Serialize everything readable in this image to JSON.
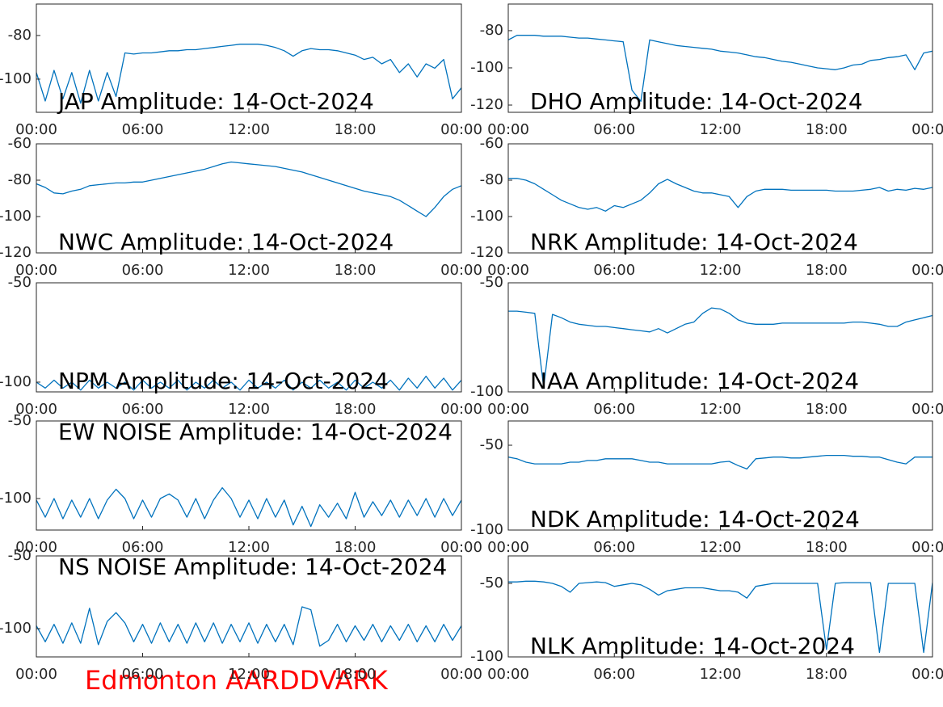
{
  "chart_data": [
    {
      "type": "line",
      "title": "JAP Amplitude: 14-Oct-2024",
      "color": "#0072bd",
      "x": [
        0,
        0.5,
        1,
        1.5,
        2,
        2.5,
        3,
        3.5,
        4,
        4.5,
        5,
        5.5,
        6,
        6.5,
        7,
        7.5,
        8,
        8.5,
        9,
        9.5,
        10,
        10.5,
        11,
        11.5,
        12,
        12.5,
        13,
        13.5,
        14,
        14.5,
        15,
        15.5,
        16,
        16.5,
        17,
        17.5,
        18,
        18.5,
        19,
        19.5,
        20,
        20.5,
        21,
        21.5,
        22,
        22.5,
        23,
        23.5,
        24
      ],
      "values": [
        -97,
        -110,
        -96,
        -109,
        -97,
        -111,
        -96,
        -110,
        -97,
        -108,
        -88,
        -88.5,
        -88,
        -88,
        -87.5,
        -87,
        -87,
        -86.5,
        -86.5,
        -86,
        -85.5,
        -85,
        -84.5,
        -84,
        -84,
        -84,
        -84.5,
        -85.5,
        -87,
        -89.5,
        -87,
        -86,
        -86.5,
        -86.5,
        -87,
        -88,
        -89,
        -91,
        -90,
        -93,
        -91,
        -97,
        -93,
        -99,
        -93,
        -95,
        -91,
        -109,
        -104
      ],
      "xlim": [
        0,
        24
      ],
      "xticks": [
        {
          "value": 0,
          "label": "00:00"
        },
        {
          "value": 6,
          "label": "06:00"
        },
        {
          "value": 12,
          "label": "12:00"
        },
        {
          "value": 18,
          "label": "18:00"
        },
        {
          "value": 24,
          "label": "00:00"
        }
      ],
      "ylim": [
        -115.2,
        -65.6
      ],
      "yticks": [
        -80,
        -100
      ]
    },
    {
      "type": "line",
      "title": "DHO Amplitude: 14-Oct-2024",
      "color": "#0072bd",
      "x": [
        0,
        0.5,
        1,
        1.5,
        2,
        2.5,
        3,
        3.5,
        4,
        4.5,
        5,
        5.5,
        6,
        6.5,
        7,
        7.5,
        8,
        8.5,
        9,
        9.5,
        10,
        10.5,
        11,
        11.5,
        12,
        12.5,
        13,
        13.5,
        14,
        14.5,
        15,
        15.5,
        16,
        16.5,
        17,
        17.5,
        18,
        18.5,
        19,
        19.5,
        20,
        20.5,
        21,
        21.5,
        22,
        22.5,
        23,
        23.5,
        24
      ],
      "values": [
        -85,
        -82.5,
        -82.5,
        -82.5,
        -83,
        -83,
        -83,
        -83.5,
        -84,
        -84,
        -84.5,
        -85,
        -85.5,
        -86,
        -112,
        -118,
        -85,
        -86,
        -87,
        -88,
        -88.5,
        -89,
        -89.5,
        -90,
        -91,
        -91.5,
        -92,
        -93,
        -94,
        -94.5,
        -95.5,
        -96.5,
        -97,
        -98,
        -99,
        -100,
        -100.5,
        -101,
        -100,
        -98.5,
        -98,
        -96,
        -95.5,
        -94.5,
        -94,
        -93,
        -101,
        -92,
        -91
      ],
      "xlim": [
        0,
        24
      ],
      "xticks": [
        {
          "value": 0,
          "label": "00:00"
        },
        {
          "value": 6,
          "label": "06:00"
        },
        {
          "value": 12,
          "label": "12:00"
        },
        {
          "value": 18,
          "label": "18:00"
        },
        {
          "value": 24,
          "label": "00:00"
        }
      ],
      "ylim": [
        -123.9,
        -65.7
      ],
      "yticks": [
        -80,
        -100,
        -120
      ]
    },
    {
      "type": "line",
      "title": "NWC Amplitude: 14-Oct-2024",
      "color": "#0072bd",
      "x": [
        0,
        0.5,
        1,
        1.5,
        2,
        2.5,
        3,
        3.5,
        4,
        4.5,
        5,
        5.5,
        6,
        6.5,
        7,
        7.5,
        8,
        8.5,
        9,
        9.5,
        10,
        10.5,
        11,
        11.5,
        12,
        12.5,
        13,
        13.5,
        14,
        14.5,
        15,
        15.5,
        16,
        16.5,
        17,
        17.5,
        18,
        18.5,
        19,
        19.5,
        20,
        20.5,
        21,
        21.5,
        22,
        22.5,
        23,
        23.5,
        24
      ],
      "values": [
        -82,
        -84,
        -87,
        -87.5,
        -86,
        -85,
        -83,
        -82.5,
        -82,
        -81.5,
        -81.5,
        -81,
        -81,
        -80,
        -79,
        -78,
        -77,
        -76,
        -75,
        -74,
        -72.5,
        -71,
        -70,
        -70.5,
        -71,
        -71.5,
        -72,
        -72.5,
        -73.5,
        -74.5,
        -75.5,
        -77,
        -78.5,
        -80,
        -81.5,
        -83,
        -84.5,
        -86,
        -87,
        -88,
        -89,
        -91,
        -94,
        -97,
        -100,
        -95,
        -89,
        -85,
        -83
      ],
      "xlim": [
        0,
        24
      ],
      "xticks": [
        {
          "value": 0,
          "label": "00:00"
        },
        {
          "value": 6,
          "label": "06:00"
        },
        {
          "value": 12,
          "label": "12:00"
        },
        {
          "value": 18,
          "label": "18:00"
        },
        {
          "value": 24,
          "label": "00:00"
        }
      ],
      "ylim": [
        -120,
        -60
      ],
      "yticks": [
        -60,
        -80,
        -100,
        -120
      ]
    },
    {
      "type": "line",
      "title": "NRK Amplitude: 14-Oct-2024",
      "color": "#0072bd",
      "x": [
        0,
        0.5,
        1,
        1.5,
        2,
        2.5,
        3,
        3.5,
        4,
        4.5,
        5,
        5.5,
        6,
        6.5,
        7,
        7.5,
        8,
        8.5,
        9,
        9.5,
        10,
        10.5,
        11,
        11.5,
        12,
        12.5,
        13,
        13.5,
        14,
        14.5,
        15,
        15.5,
        16,
        16.5,
        17,
        17.5,
        18,
        18.5,
        19,
        19.5,
        20,
        20.5,
        21,
        21.5,
        22,
        22.5,
        23,
        23.5,
        24
      ],
      "values": [
        -79,
        -79,
        -80,
        -82,
        -85,
        -88,
        -91,
        -93,
        -95,
        -96,
        -95,
        -97,
        -94,
        -95,
        -93,
        -91,
        -87,
        -82,
        -79.5,
        -82,
        -84,
        -86,
        -87,
        -87,
        -88,
        -89,
        -95,
        -89,
        -86,
        -85,
        -85,
        -85,
        -85.5,
        -85.5,
        -85.5,
        -85.5,
        -85.5,
        -86,
        -86,
        -86,
        -85.5,
        -85,
        -84,
        -86,
        -85,
        -85.5,
        -84.5,
        -85,
        -84
      ],
      "xlim": [
        0,
        24
      ],
      "xticks": [
        {
          "value": 0,
          "label": "00:00"
        },
        {
          "value": 6,
          "label": "06:00"
        },
        {
          "value": 12,
          "label": "12:00"
        },
        {
          "value": 18,
          "label": "18:00"
        },
        {
          "value": 24,
          "label": "00:00"
        }
      ],
      "ylim": [
        -120,
        -60
      ],
      "yticks": [
        -60,
        -80,
        -100,
        -120
      ]
    },
    {
      "type": "line",
      "title": "NPM Amplitude: 14-Oct-2024",
      "color": "#0072bd",
      "x": [
        0,
        0.5,
        1,
        1.5,
        2,
        2.5,
        3,
        3.5,
        4,
        4.5,
        5,
        5.5,
        6,
        6.5,
        7,
        7.5,
        8,
        8.5,
        9,
        9.5,
        10,
        10.5,
        11,
        11.5,
        12,
        12.5,
        13,
        13.5,
        14,
        14.5,
        15,
        15.5,
        16,
        16.5,
        17,
        17.5,
        18,
        18.5,
        19,
        19.5,
        20,
        20.5,
        21,
        21.5,
        22,
        22.5,
        23,
        23.5,
        24
      ],
      "values": [
        -100,
        -103,
        -99,
        -103,
        -100,
        -104,
        -99,
        -103,
        -100,
        -103,
        -100,
        -104,
        -99,
        -103,
        -100,
        -103,
        -99,
        -104,
        -100,
        -103,
        -99,
        -103,
        -100,
        -104,
        -99,
        -103,
        -100,
        -103,
        -99,
        -104,
        -100,
        -103,
        -99,
        -103,
        -100,
        -104,
        -99,
        -103,
        -100,
        -103,
        -99,
        -104,
        -98,
        -103,
        -97,
        -103,
        -98,
        -104,
        -99
      ],
      "xlim": [
        0,
        24
      ],
      "xticks": [
        {
          "value": 0,
          "label": "00:00"
        },
        {
          "value": 6,
          "label": "06:00"
        },
        {
          "value": 12,
          "label": "12:00"
        },
        {
          "value": 18,
          "label": "18:00"
        },
        {
          "value": 24,
          "label": "00:00"
        }
      ],
      "ylim": [
        -104.9,
        -50
      ],
      "yticks": [
        -50,
        -100
      ]
    },
    {
      "type": "line",
      "title": "NAA Amplitude: 14-Oct-2024",
      "color": "#0072bd",
      "x": [
        0,
        0.5,
        1,
        1.5,
        2,
        2.5,
        3,
        3.5,
        4,
        4.5,
        5,
        5.5,
        6,
        6.5,
        7,
        7.5,
        8,
        8.5,
        9,
        9.5,
        10,
        10.5,
        11,
        11.5,
        12,
        12.5,
        13,
        13.5,
        14,
        14.5,
        15,
        15.5,
        16,
        16.5,
        17,
        17.5,
        18,
        18.5,
        19,
        19.5,
        20,
        20.5,
        21,
        21.5,
        22,
        22.5,
        23,
        23.5,
        24
      ],
      "values": [
        -63,
        -63,
        -63.5,
        -64,
        -98,
        -64.5,
        -66,
        -68,
        -69,
        -69.5,
        -70,
        -70,
        -70.5,
        -71,
        -71.5,
        -72,
        -72.5,
        -71,
        -73,
        -71,
        -69,
        -68,
        -64,
        -61.5,
        -62,
        -64,
        -67,
        -68.5,
        -69,
        -69,
        -69,
        -68.5,
        -68.5,
        -68.5,
        -68.5,
        -68.5,
        -68.5,
        -68.5,
        -68.5,
        -68,
        -68,
        -68.5,
        -69,
        -70,
        -70,
        -68,
        -67,
        -66,
        -65
      ],
      "xlim": [
        0,
        24
      ],
      "xticks": [
        {
          "value": 0,
          "label": "00:00"
        },
        {
          "value": 6,
          "label": "06:00"
        },
        {
          "value": 12,
          "label": "12:00"
        },
        {
          "value": 18,
          "label": "18:00"
        },
        {
          "value": 24,
          "label": "00:00"
        }
      ],
      "ylim": [
        -100,
        -50
      ],
      "yticks": [
        -50,
        -100
      ]
    },
    {
      "type": "line",
      "title": "EW NOISE Amplitude: 14-Oct-2024",
      "color": "#0072bd",
      "x": [
        0,
        0.5,
        1,
        1.5,
        2,
        2.5,
        3,
        3.5,
        4,
        4.5,
        5,
        5.5,
        6,
        6.5,
        7,
        7.5,
        8,
        8.5,
        9,
        9.5,
        10,
        10.5,
        11,
        11.5,
        12,
        12.5,
        13,
        13.5,
        14,
        14.5,
        15,
        15.5,
        16,
        16.5,
        17,
        17.5,
        18,
        18.5,
        19,
        19.5,
        20,
        20.5,
        21,
        21.5,
        22,
        22.5,
        23,
        23.5,
        24
      ],
      "values": [
        -101,
        -112,
        -100,
        -113,
        -101,
        -112,
        -100,
        -113,
        -101,
        -94,
        -100,
        -113,
        -101,
        -112,
        -100,
        -97,
        -101,
        -112,
        -100,
        -113,
        -101,
        -93,
        -100,
        -112,
        -101,
        -113,
        -100,
        -112,
        -101,
        -117,
        -105,
        -118,
        -104,
        -112,
        -103,
        -113,
        -96,
        -112,
        -102,
        -111,
        -101,
        -112,
        -101,
        -111,
        -100,
        -112,
        -100,
        -111,
        -101
      ],
      "xlim": [
        0,
        24
      ],
      "xticks": [
        {
          "value": 0,
          "label": "00:00"
        },
        {
          "value": 6,
          "label": "06:00"
        },
        {
          "value": 12,
          "label": "12:00"
        },
        {
          "value": 18,
          "label": "18:00"
        },
        {
          "value": 24,
          "label": "00:00"
        }
      ],
      "ylim": [
        -120.3,
        -50
      ],
      "yticks": [
        -50,
        -100
      ]
    },
    {
      "type": "line",
      "title": "NDK Amplitude: 14-Oct-2024",
      "color": "#0072bd",
      "x": [
        0,
        0.5,
        1,
        1.5,
        2,
        2.5,
        3,
        3.5,
        4,
        4.5,
        5,
        5.5,
        6,
        6.5,
        7,
        7.5,
        8,
        8.5,
        9,
        9.5,
        10,
        10.5,
        11,
        11.5,
        12,
        12.5,
        13,
        13.5,
        14,
        14.5,
        15,
        15.5,
        16,
        16.5,
        17,
        17.5,
        18,
        18.5,
        19,
        19.5,
        20,
        20.5,
        21,
        21.5,
        22,
        22.5,
        23,
        23.5,
        24
      ],
      "values": [
        -57,
        -58,
        -60,
        -61,
        -61,
        -61,
        -61,
        -60,
        -60,
        -59,
        -59,
        -58,
        -58,
        -58,
        -58,
        -59,
        -60,
        -60,
        -61,
        -61,
        -61,
        -61,
        -61,
        -61,
        -60,
        -59.5,
        -62,
        -64,
        -58,
        -57.5,
        -57,
        -57,
        -57.5,
        -57.5,
        -57,
        -56.5,
        -56,
        -56,
        -56,
        -56.5,
        -56.5,
        -57,
        -57,
        -58.5,
        -60,
        -61,
        -57,
        -57,
        -57
      ],
      "xlim": [
        0,
        24
      ],
      "xticks": [
        {
          "value": 0,
          "label": "00:00"
        },
        {
          "value": 6,
          "label": "06:00"
        },
        {
          "value": 12,
          "label": "12:00"
        },
        {
          "value": 18,
          "label": "18:00"
        },
        {
          "value": 24,
          "label": "00:00"
        }
      ],
      "ylim": [
        -100,
        -35.7
      ],
      "yticks": [
        -50,
        -100
      ]
    },
    {
      "type": "line",
      "title": "NS NOISE Amplitude: 14-Oct-2024",
      "color": "#0072bd",
      "x": [
        0,
        0.5,
        1,
        1.5,
        2,
        2.5,
        3,
        3.5,
        4,
        4.5,
        5,
        5.5,
        6,
        6.5,
        7,
        7.5,
        8,
        8.5,
        9,
        9.5,
        10,
        10.5,
        11,
        11.5,
        12,
        12.5,
        13,
        13.5,
        14,
        14.5,
        15,
        15.5,
        16,
        16.5,
        17,
        17.5,
        18,
        18.5,
        19,
        19.5,
        20,
        20.5,
        21,
        21.5,
        22,
        22.5,
        23,
        23.5,
        24
      ],
      "values": [
        -98,
        -109,
        -97,
        -110,
        -96,
        -110,
        -86,
        -111,
        -95,
        -89,
        -96,
        -109,
        -97,
        -110,
        -96,
        -109,
        -97,
        -110,
        -96,
        -109,
        -96,
        -110,
        -97,
        -109,
        -96,
        -110,
        -97,
        -109,
        -97,
        -111,
        -85,
        -87,
        -112,
        -108,
        -97,
        -109,
        -98,
        -108,
        -97,
        -109,
        -98,
        -108,
        -97,
        -109,
        -98,
        -109,
        -97,
        -108,
        -98
      ],
      "xlim": [
        0,
        24
      ],
      "xticks": [
        {
          "value": 0,
          "label": "00:00"
        },
        {
          "value": 6,
          "label": "06:00"
        },
        {
          "value": 12,
          "label": "12:00"
        },
        {
          "value": 18,
          "label": "18:00"
        },
        {
          "value": 24,
          "label": "00:00"
        }
      ],
      "ylim": [
        -119.4,
        -50
      ],
      "yticks": [
        -50,
        -100
      ]
    },
    {
      "type": "line",
      "title": "NLK Amplitude: 14-Oct-2024",
      "color": "#0072bd",
      "x": [
        0,
        0.5,
        1,
        1.5,
        2,
        2.5,
        3,
        3.5,
        4,
        4.5,
        5,
        5.5,
        6,
        6.5,
        7,
        7.5,
        8,
        8.5,
        9,
        9.5,
        10,
        10.5,
        11,
        11.5,
        12,
        12.5,
        13,
        13.5,
        14,
        14.5,
        15,
        15.5,
        16,
        16.5,
        17,
        17.5,
        18,
        18.5,
        19,
        19.5,
        20,
        20.5,
        21,
        21.5,
        22,
        22.5,
        23,
        23.5,
        24
      ],
      "values": [
        -49,
        -49,
        -48.5,
        -48.5,
        -49,
        -50,
        -52,
        -56,
        -50,
        -49.5,
        -49,
        -49.5,
        -52,
        -51,
        -50,
        -51,
        -54,
        -58,
        -55,
        -54,
        -53,
        -53,
        -53,
        -54,
        -55,
        -55,
        -56,
        -60,
        -52,
        -51,
        -50,
        -50,
        -50,
        -50,
        -50,
        -50,
        -95,
        -50,
        -49.5,
        -49.5,
        -49.5,
        -49.5,
        -97,
        -50,
        -50,
        -50,
        -50,
        -97,
        -49.5
      ],
      "xlim": [
        0,
        24
      ],
      "xticks": [
        {
          "value": 0,
          "label": "00:00"
        },
        {
          "value": 6,
          "label": "06:00"
        },
        {
          "value": 12,
          "label": "12:00"
        },
        {
          "value": 18,
          "label": "18:00"
        },
        {
          "value": 24,
          "label": "00:00"
        }
      ],
      "ylim": [
        -100,
        -31.3
      ],
      "yticks": [
        -50,
        -100
      ]
    }
  ],
  "footer": "Edmonton AARDDVARK"
}
